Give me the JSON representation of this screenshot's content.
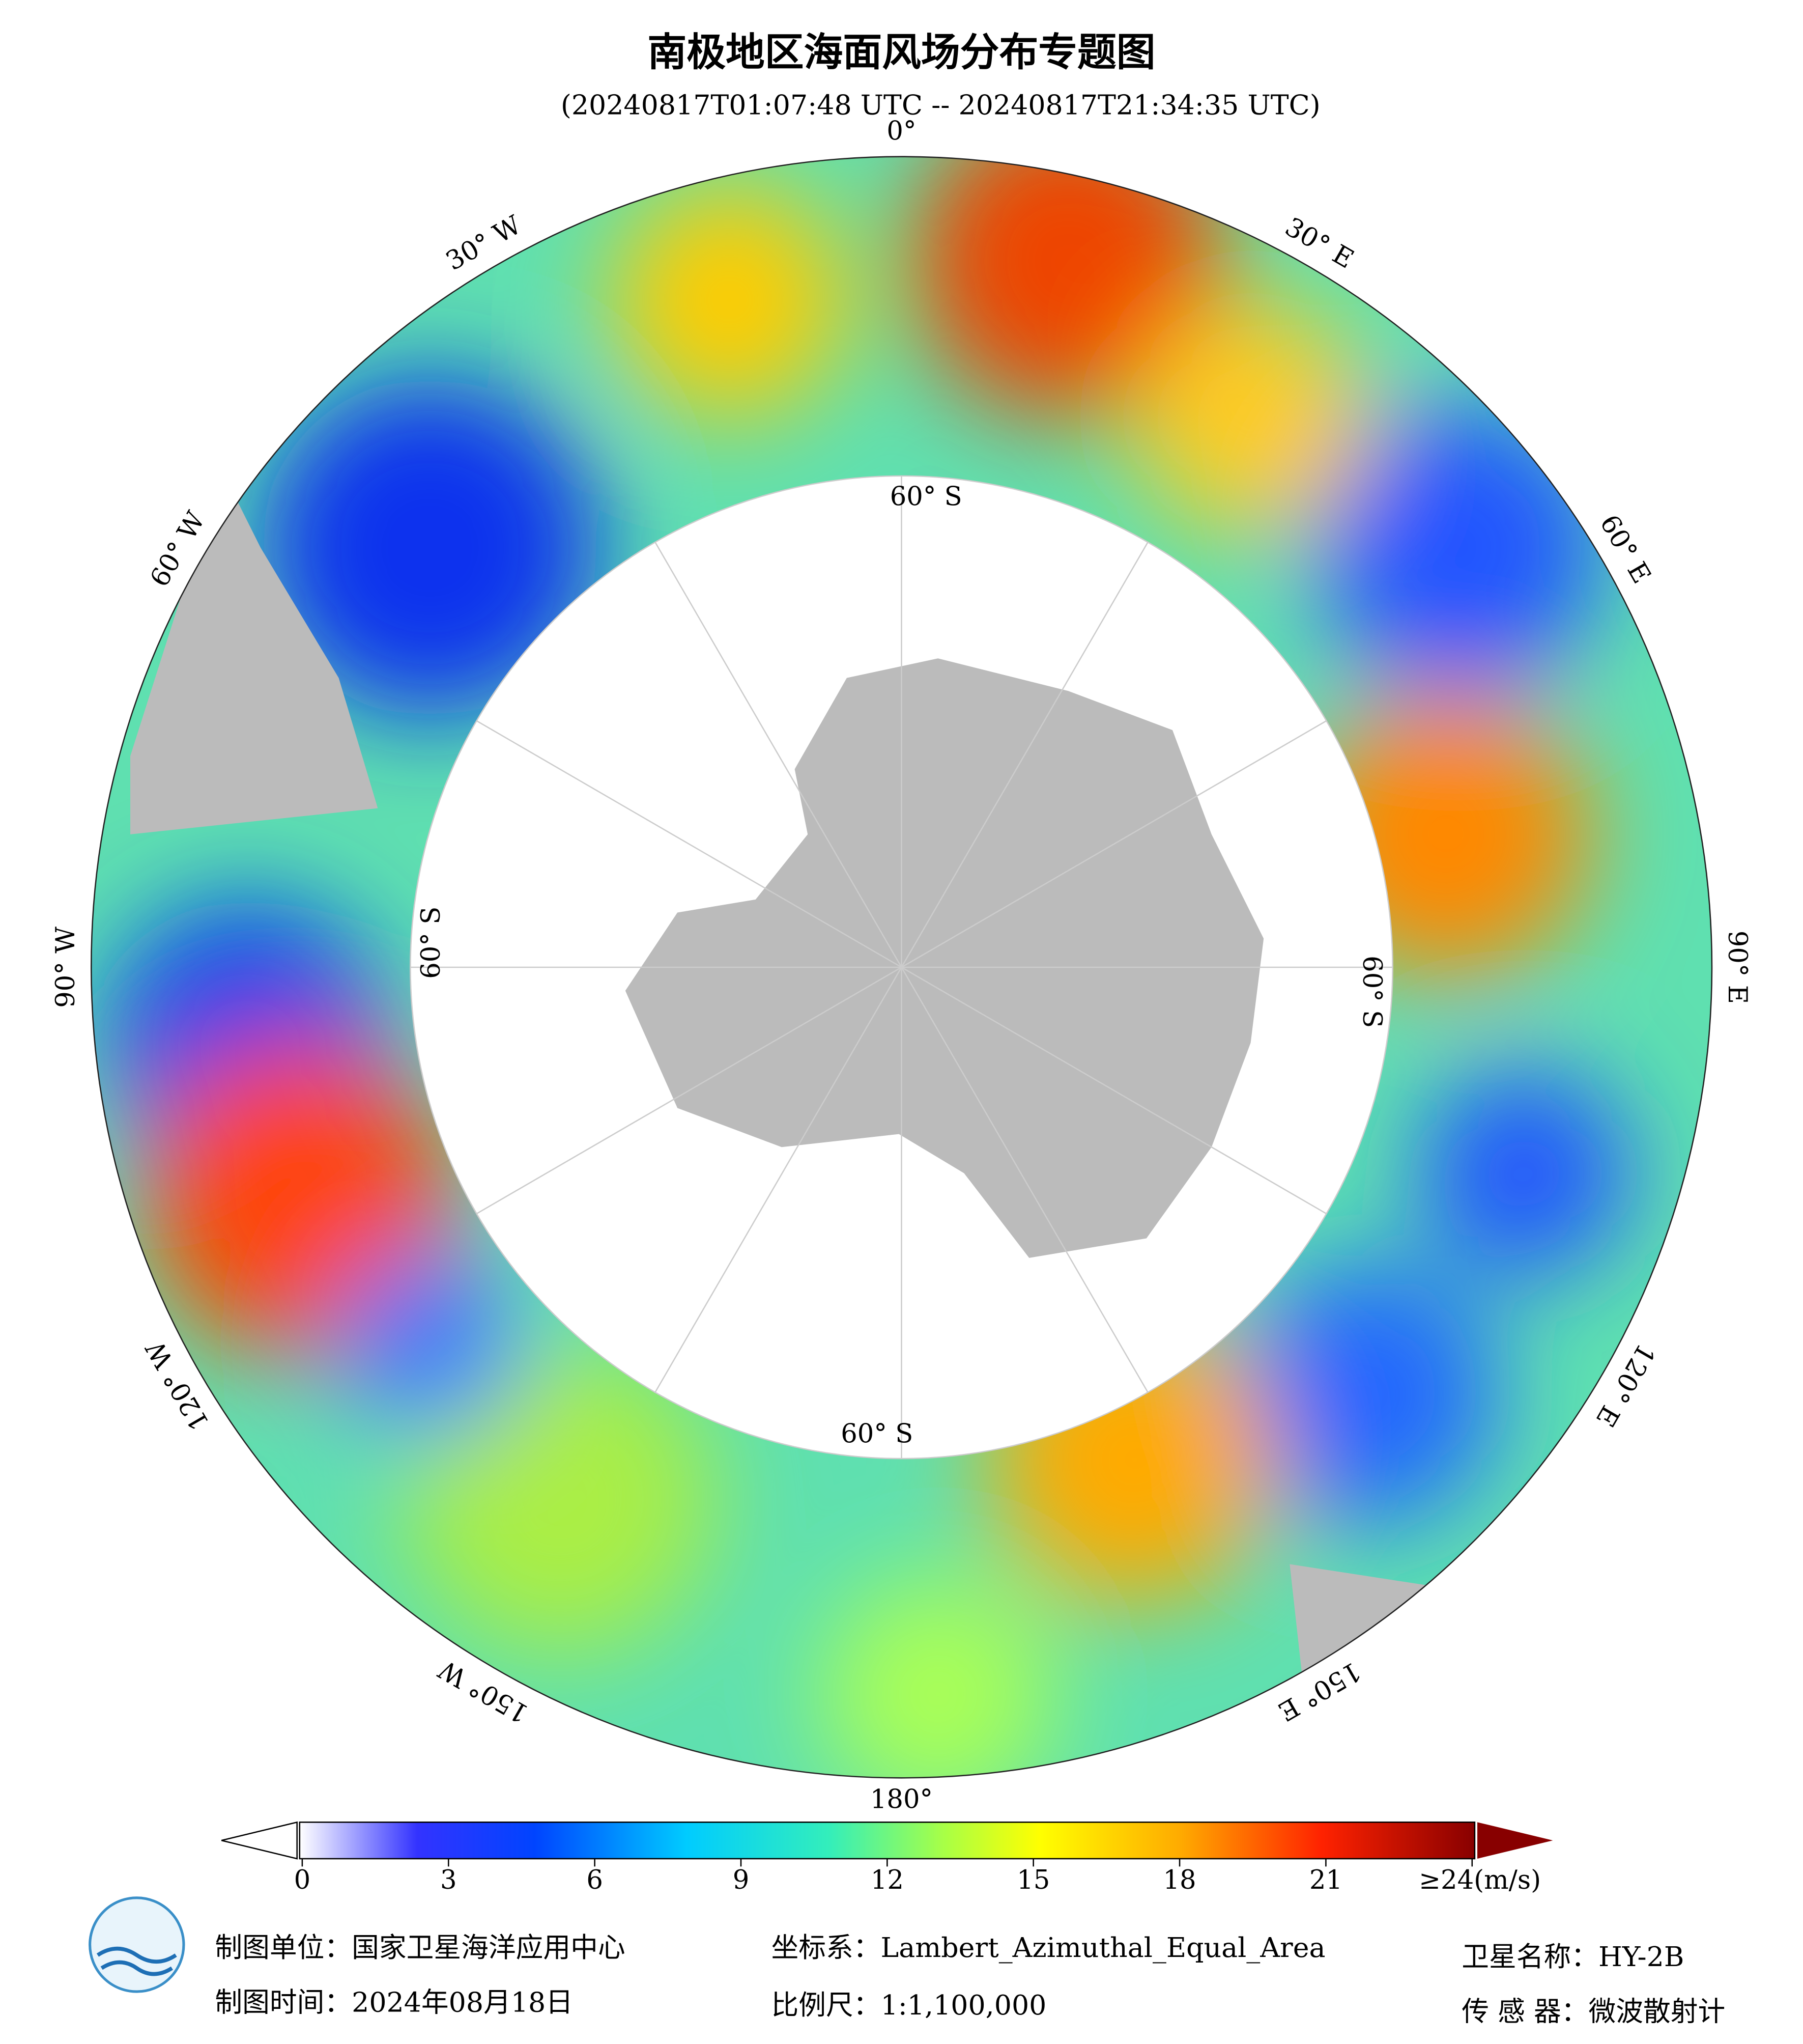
{
  "header": {
    "title": "南极地区海面风场分布专题图",
    "subtitle": "(20240817T01:07:48 UTC -- 20240817T21:34:35 UTC)"
  },
  "map": {
    "longitude_labels": [
      "0°",
      "30° E",
      "60° E",
      "90° E",
      "120° E",
      "150° E",
      "180°",
      "150° W",
      "120° W",
      "90° W",
      "60° W",
      "30° W"
    ],
    "latitude_labels": [
      "60° S",
      "60° S",
      "60° S",
      "60° S"
    ]
  },
  "colorbar": {
    "range": [
      0,
      24
    ],
    "ticks": [
      0,
      3,
      6,
      9,
      12,
      15,
      18,
      21,
      {
        "value": 24,
        "label": "≥24(m/s)"
      }
    ]
  },
  "footer": {
    "unit": "制图单位：国家卫星海洋应用中心",
    "date": "制图时间：2024年08月18日",
    "crs": "坐标系：Lambert_Azimuthal_Equal_Area",
    "scale": "比例尺：1:1,100,000",
    "satellite": "卫星名称：HY-2B",
    "sensor": "传 感 器：微波散射计"
  }
}
